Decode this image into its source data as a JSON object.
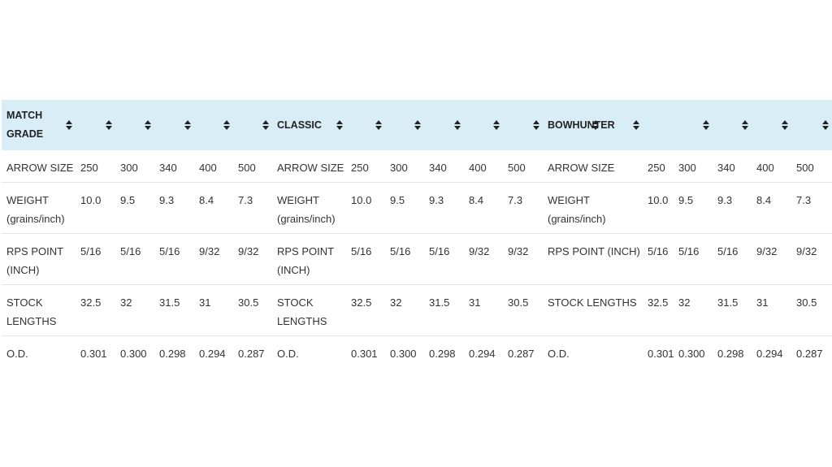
{
  "table": {
    "headers": [
      "MATCH GRADE",
      "",
      "",
      "",
      "",
      "",
      "CLASSIC",
      "",
      "",
      "",
      "",
      "",
      "BOWHUNTER",
      "",
      "",
      "",
      "",
      ""
    ],
    "rows": [
      [
        "ARROW SIZE",
        "250",
        "300",
        "340",
        "400",
        "500",
        "ARROW SIZE",
        "250",
        "300",
        "340",
        "400",
        "500",
        "ARROW SIZE",
        "250",
        "300",
        "340",
        "400",
        "500"
      ],
      [
        "WEIGHT (grains/inch)",
        "10.0",
        "9.5",
        "9.3",
        "8.4",
        "7.3",
        "WEIGHT (grains/inch)",
        "10.0",
        "9.5",
        "9.3",
        "8.4",
        "7.3",
        "WEIGHT (grains/inch)",
        "10.0",
        "9.5",
        "9.3",
        "8.4",
        "7.3"
      ],
      [
        "RPS POINT (INCH)",
        "5/16",
        "5/16",
        "5/16",
        "9/32",
        "9/32",
        "RPS POINT (INCH)",
        "5/16",
        "5/16",
        "5/16",
        "9/32",
        "9/32",
        "RPS POINT (INCH)",
        "5/16",
        "5/16",
        "5/16",
        "9/32",
        "9/32"
      ],
      [
        "STOCK LENGTHS",
        "32.5",
        "32",
        "31.5",
        "31",
        "30.5",
        "STOCK LENGTHS",
        "32.5",
        "32",
        "31.5",
        "31",
        "30.5",
        "STOCK LENGTHS",
        "32.5",
        "32",
        "31.5",
        "31",
        "30.5"
      ],
      [
        "O.D.",
        "0.301",
        "0.300",
        "0.298",
        "0.294",
        "0.287",
        "O.D.",
        "0.301",
        "0.300",
        "0.298",
        "0.294",
        "0.287",
        "O.D.",
        "0.301",
        "0.300",
        "0.298",
        "0.294",
        "0.287"
      ]
    ],
    "sort_icon": "sort-both-icon",
    "header_bg": "#d9edf7"
  }
}
